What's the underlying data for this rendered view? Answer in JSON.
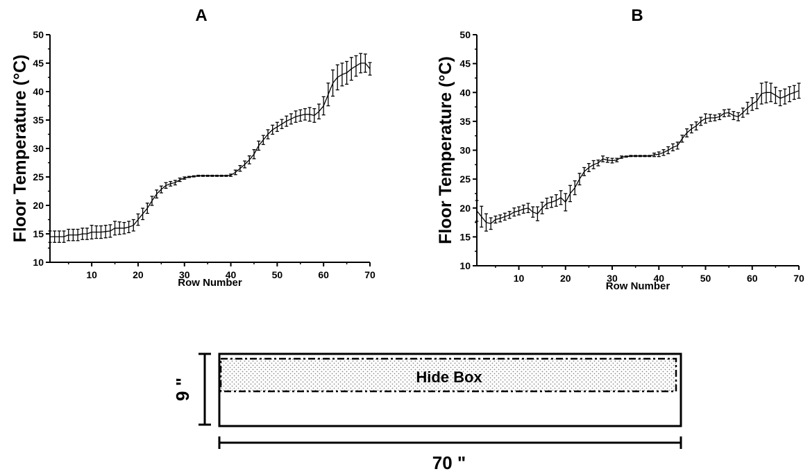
{
  "chart_data": [
    {
      "type": "line",
      "title": "A",
      "xlabel": "Row Number",
      "ylabel": "Floor Temperature (°C)",
      "xlim": [
        1,
        70
      ],
      "ylim": [
        10,
        50
      ],
      "xticks": [
        10,
        20,
        30,
        40,
        50,
        60,
        70
      ],
      "yticks": [
        10,
        15,
        20,
        25,
        30,
        35,
        40,
        45,
        50
      ],
      "grid": false,
      "series": [
        {
          "x": [
            1,
            2,
            3,
            4,
            5,
            6,
            7,
            8,
            9,
            10,
            11,
            12,
            13,
            14,
            15,
            16,
            17,
            18,
            19,
            20,
            21,
            22,
            23,
            24,
            25,
            26,
            27,
            28,
            29,
            30,
            31,
            32,
            33,
            34,
            35,
            36,
            37,
            38,
            39,
            40,
            41,
            42,
            43,
            44,
            45,
            46,
            47,
            48,
            49,
            50,
            51,
            52,
            53,
            54,
            55,
            56,
            57,
            58,
            59,
            60,
            61,
            62,
            63,
            64,
            65,
            66,
            67,
            68,
            69,
            70
          ],
          "y": [
            14.5,
            14.5,
            14.5,
            14.5,
            14.8,
            14.8,
            14.8,
            15.0,
            15.0,
            15.3,
            15.3,
            15.3,
            15.4,
            15.5,
            16.0,
            16.0,
            16.0,
            16.2,
            16.5,
            17.5,
            18.5,
            19.5,
            20.8,
            22.0,
            22.8,
            23.5,
            23.8,
            24.0,
            24.5,
            24.8,
            25.0,
            25.1,
            25.2,
            25.2,
            25.2,
            25.2,
            25.2,
            25.2,
            25.2,
            25.3,
            25.8,
            26.5,
            27.2,
            28.0,
            29.0,
            30.5,
            31.5,
            32.5,
            33.3,
            33.8,
            34.3,
            34.8,
            35.2,
            35.6,
            35.8,
            36.0,
            36.0,
            35.8,
            36.5,
            37.5,
            39.5,
            41.5,
            42.5,
            43.0,
            43.3,
            44.0,
            44.5,
            45.0,
            45.0,
            44.0
          ],
          "err": [
            1.0,
            1.0,
            1.0,
            1.0,
            1.0,
            1.0,
            1.0,
            1.0,
            1.0,
            1.2,
            1.1,
            1.1,
            1.1,
            1.1,
            1.2,
            1.1,
            1.0,
            1.0,
            1.0,
            1.0,
            1.0,
            0.9,
            0.8,
            0.7,
            0.6,
            0.5,
            0.4,
            0.4,
            0.3,
            0.2,
            0.1,
            0.1,
            0.1,
            0.1,
            0.1,
            0.1,
            0.1,
            0.1,
            0.1,
            0.2,
            0.4,
            0.5,
            0.6,
            0.7,
            0.8,
            0.8,
            0.8,
            0.8,
            0.8,
            0.8,
            0.8,
            0.9,
            0.9,
            1.0,
            1.0,
            1.0,
            1.2,
            1.2,
            1.3,
            1.6,
            2.0,
            2.3,
            2.2,
            2.0,
            2.0,
            2.0,
            1.8,
            1.7,
            1.6,
            1.1
          ]
        }
      ]
    },
    {
      "type": "line",
      "title": "B",
      "xlabel": "Row Number",
      "ylabel": "Floor Temperature (°C)",
      "xlim": [
        1,
        70
      ],
      "ylim": [
        10,
        50
      ],
      "xticks": [
        10,
        20,
        30,
        40,
        50,
        60,
        70
      ],
      "yticks": [
        10,
        15,
        20,
        25,
        30,
        35,
        40,
        45,
        50
      ],
      "grid": false,
      "series": [
        {
          "x": [
            1,
            2,
            3,
            4,
            5,
            6,
            7,
            8,
            9,
            10,
            11,
            12,
            13,
            14,
            15,
            16,
            17,
            18,
            19,
            20,
            21,
            22,
            23,
            24,
            25,
            26,
            27,
            28,
            29,
            30,
            31,
            32,
            33,
            34,
            35,
            36,
            37,
            38,
            39,
            40,
            41,
            42,
            43,
            44,
            45,
            46,
            47,
            48,
            49,
            50,
            51,
            52,
            53,
            54,
            55,
            56,
            57,
            58,
            59,
            60,
            61,
            62,
            63,
            64,
            65,
            66,
            67,
            68,
            69,
            70
          ],
          "y": [
            19.5,
            18.5,
            17.5,
            17.3,
            18.0,
            18.2,
            18.5,
            18.8,
            19.3,
            19.5,
            19.8,
            20.0,
            19.3,
            19.0,
            20.0,
            20.8,
            21.0,
            21.3,
            21.8,
            21.0,
            22.5,
            23.5,
            25.0,
            26.3,
            27.0,
            27.5,
            27.8,
            28.5,
            28.3,
            28.2,
            28.3,
            28.8,
            28.9,
            29.0,
            29.0,
            29.0,
            29.0,
            29.0,
            29.2,
            29.3,
            29.6,
            30.0,
            30.5,
            30.8,
            32.0,
            33.0,
            33.7,
            34.2,
            35.0,
            35.5,
            35.6,
            35.6,
            35.8,
            36.4,
            36.5,
            36.0,
            35.8,
            36.5,
            37.3,
            38.0,
            38.5,
            39.8,
            40.0,
            40.0,
            39.5,
            39.0,
            39.3,
            39.7,
            40.0,
            40.3
          ],
          "err": [
            1.8,
            1.8,
            1.5,
            1.0,
            0.6,
            0.6,
            0.6,
            0.6,
            0.7,
            0.7,
            0.7,
            0.8,
            0.9,
            1.2,
            1.0,
            0.9,
            0.9,
            1.0,
            1.2,
            1.5,
            1.4,
            1.2,
            1.0,
            0.7,
            0.7,
            0.7,
            0.5,
            0.5,
            0.4,
            0.4,
            0.3,
            0.2,
            0.1,
            0.1,
            0.1,
            0.1,
            0.1,
            0.1,
            0.3,
            0.4,
            0.5,
            0.6,
            0.6,
            0.6,
            0.6,
            0.7,
            0.7,
            0.7,
            0.7,
            0.8,
            0.6,
            0.5,
            0.5,
            0.6,
            0.6,
            0.7,
            0.7,
            0.8,
            1.0,
            1.1,
            1.3,
            1.8,
            1.8,
            1.6,
            1.4,
            1.3,
            1.3,
            1.3,
            1.2,
            1.3
          ]
        }
      ]
    }
  ],
  "diagram": {
    "box_label": "Hide Box",
    "height_label": "9 \"",
    "width_label": "70 \""
  }
}
